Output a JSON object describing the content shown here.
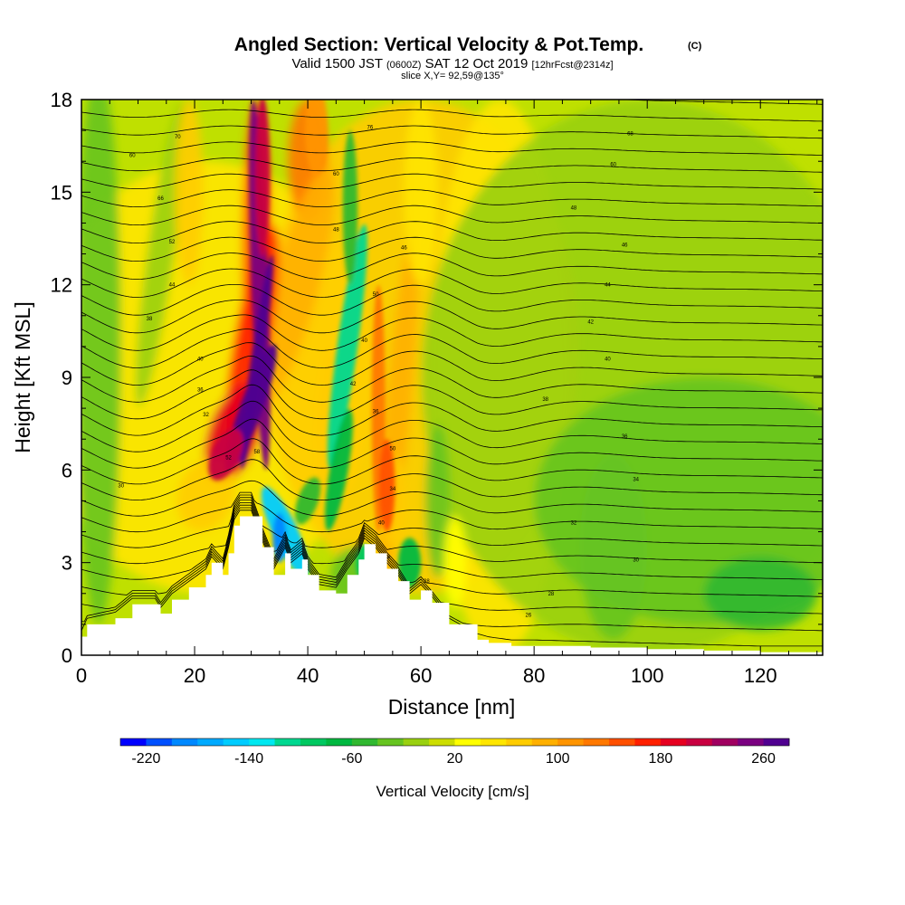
{
  "header": {
    "title": "Angled Section: Vertical Velocity & Pot.Temp.",
    "copyright": "(C)",
    "valid_prefix": "Valid 1500 JST",
    "valid_utc": "(0600Z)",
    "valid_date": "SAT 12 Oct 2019",
    "forecast": "[12hrFcst@2314z]",
    "slice": "slice X,Y= 92,59@135°"
  },
  "colorbar": {
    "label": "Vertical Velocity [cm/s]",
    "tick_labels": [
      "-220",
      "-140",
      "-60",
      "20",
      "100",
      "180",
      "260"
    ],
    "colors": [
      "#0000ff",
      "#0050ff",
      "#0088ff",
      "#00aaff",
      "#00ccff",
      "#00e8f0",
      "#00d890",
      "#00c860",
      "#00b840",
      "#30b830",
      "#66c420",
      "#99d010",
      "#ccdd00",
      "#ffff00",
      "#ffe600",
      "#ffcc00",
      "#ffb000",
      "#ff9400",
      "#ff7800",
      "#ff5000",
      "#ff2000",
      "#e60020",
      "#c80040",
      "#a00060",
      "#7a0080",
      "#500090"
    ]
  },
  "chart_data": {
    "type": "heatmap",
    "xlabel": "Distance [nm]",
    "ylabel": "Height [Kft MSL]",
    "xlim": [
      0,
      131
    ],
    "ylim": [
      0,
      18
    ],
    "x_ticks": [
      0,
      20,
      40,
      60,
      80,
      100,
      120
    ],
    "y_ticks": [
      0,
      3,
      6,
      9,
      12,
      15,
      18
    ],
    "terrain_profile": [
      [
        0,
        0.6
      ],
      [
        1,
        1.0
      ],
      [
        6,
        1.2
      ],
      [
        9,
        1.65
      ],
      [
        13,
        1.65
      ],
      [
        14,
        1.35
      ],
      [
        16,
        1.8
      ],
      [
        19,
        2.2
      ],
      [
        22,
        2.6
      ],
      [
        23,
        3.0
      ],
      [
        25,
        2.6
      ],
      [
        26,
        3.3
      ],
      [
        27,
        4.2
      ],
      [
        28,
        4.5
      ],
      [
        30,
        4.5
      ],
      [
        32,
        3.5
      ],
      [
        34,
        2.6
      ],
      [
        36,
        3.3
      ],
      [
        37,
        2.8
      ],
      [
        39,
        3.1
      ],
      [
        40,
        2.6
      ],
      [
        42,
        2.1
      ],
      [
        45,
        2.0
      ],
      [
        47,
        2.6
      ],
      [
        49,
        3.1
      ],
      [
        50,
        3.6
      ],
      [
        52,
        3.3
      ],
      [
        54,
        2.8
      ],
      [
        56,
        2.4
      ],
      [
        58,
        1.8
      ],
      [
        60,
        2.1
      ],
      [
        62,
        1.7
      ],
      [
        65,
        1.0
      ],
      [
        70,
        0.5
      ],
      [
        72,
        0.4
      ],
      [
        76,
        0.3
      ],
      [
        80,
        0.3
      ],
      [
        90,
        0.25
      ],
      [
        100,
        0.2
      ],
      [
        110,
        0.15
      ],
      [
        120,
        0.1
      ],
      [
        131,
        0.1
      ]
    ],
    "updrafts_cm_s": [
      {
        "x": 31,
        "z": 9,
        "w": 300
      },
      {
        "x": 25,
        "z": 6.5,
        "w": 200
      },
      {
        "x": 55,
        "z": 7,
        "w": 140
      },
      {
        "x": 40,
        "z": 16,
        "w": 120
      },
      {
        "x": 20,
        "z": 15,
        "w": 60
      }
    ],
    "downdrafts_cm_s": [
      {
        "x": 47,
        "z": 10,
        "w": -120
      },
      {
        "x": 36,
        "z": 4,
        "w": -160
      },
      {
        "x": 58,
        "z": 3,
        "w": -60
      },
      {
        "x": 15,
        "z": 13,
        "w": -20
      }
    ],
    "contour_labels": [
      {
        "x": 17,
        "z": 16.8,
        "text": "70"
      },
      {
        "x": 9,
        "z": 16.2,
        "text": "60"
      },
      {
        "x": 14,
        "z": 14.8,
        "text": "66"
      },
      {
        "x": 16,
        "z": 13.4,
        "text": "52"
      },
      {
        "x": 16,
        "z": 12.0,
        "text": "44"
      },
      {
        "x": 12,
        "z": 10.9,
        "text": "38"
      },
      {
        "x": 21,
        "z": 9.6,
        "text": "40"
      },
      {
        "x": 21,
        "z": 8.6,
        "text": "36"
      },
      {
        "x": 22,
        "z": 7.8,
        "text": "32"
      },
      {
        "x": 26,
        "z": 6.4,
        "text": "52"
      },
      {
        "x": 31,
        "z": 6.6,
        "text": "58"
      },
      {
        "x": 7,
        "z": 5.5,
        "text": "30"
      },
      {
        "x": 51,
        "z": 17.1,
        "text": "76"
      },
      {
        "x": 45,
        "z": 15.6,
        "text": "60"
      },
      {
        "x": 45,
        "z": 13.8,
        "text": "48"
      },
      {
        "x": 57,
        "z": 13.2,
        "text": "46"
      },
      {
        "x": 52,
        "z": 11.7,
        "text": "50"
      },
      {
        "x": 50,
        "z": 10.2,
        "text": "40"
      },
      {
        "x": 48,
        "z": 8.8,
        "text": "42"
      },
      {
        "x": 52,
        "z": 7.9,
        "text": "36"
      },
      {
        "x": 55,
        "z": 6.7,
        "text": "50"
      },
      {
        "x": 55,
        "z": 5.4,
        "text": "34"
      },
      {
        "x": 53,
        "z": 4.3,
        "text": "40"
      },
      {
        "x": 54,
        "z": 3.2,
        "text": "28"
      },
      {
        "x": 61,
        "z": 2.4,
        "text": "28"
      },
      {
        "x": 97,
        "z": 16.9,
        "text": "68"
      },
      {
        "x": 94,
        "z": 15.9,
        "text": "60"
      },
      {
        "x": 87,
        "z": 14.5,
        "text": "48"
      },
      {
        "x": 96,
        "z": 13.3,
        "text": "46"
      },
      {
        "x": 93,
        "z": 12.0,
        "text": "44"
      },
      {
        "x": 90,
        "z": 10.8,
        "text": "42"
      },
      {
        "x": 93,
        "z": 9.6,
        "text": "40"
      },
      {
        "x": 82,
        "z": 8.3,
        "text": "38"
      },
      {
        "x": 96,
        "z": 7.1,
        "text": "36"
      },
      {
        "x": 98,
        "z": 5.7,
        "text": "34"
      },
      {
        "x": 87,
        "z": 4.3,
        "text": "32"
      },
      {
        "x": 98,
        "z": 3.1,
        "text": "30"
      },
      {
        "x": 83,
        "z": 2.0,
        "text": "28"
      },
      {
        "x": 79,
        "z": 1.3,
        "text": "26"
      }
    ]
  }
}
